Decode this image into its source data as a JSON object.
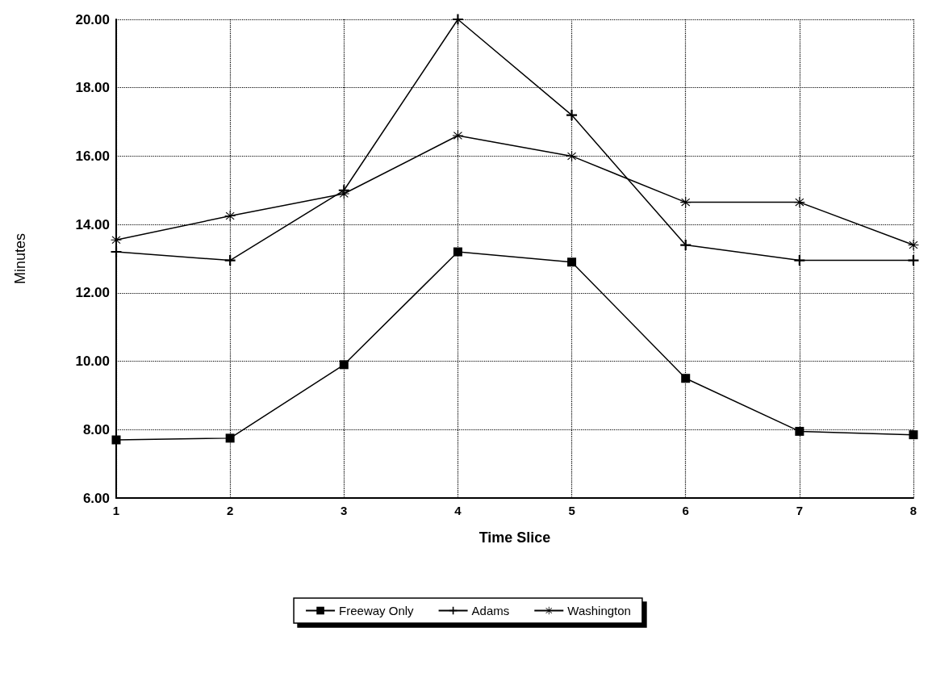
{
  "chart_data": {
    "type": "line",
    "xlabel": "Time Slice",
    "ylabel": "Minutes",
    "x": [
      1,
      2,
      3,
      4,
      5,
      6,
      7,
      8
    ],
    "xlim": [
      1,
      8
    ],
    "xticks": [
      1,
      2,
      3,
      4,
      5,
      6,
      7,
      8
    ],
    "ylim": [
      6,
      20
    ],
    "yticks": [
      {
        "value": 6,
        "label": "6.00"
      },
      {
        "value": 8,
        "label": "8.00"
      },
      {
        "value": 10,
        "label": "10.00"
      },
      {
        "value": 12,
        "label": "12.00"
      },
      {
        "value": 14,
        "label": "14.00"
      },
      {
        "value": 16,
        "label": "16.00"
      },
      {
        "value": 18,
        "label": "18.00"
      },
      {
        "value": 20,
        "label": "20.00"
      }
    ],
    "grid": true,
    "legend": "bottom",
    "line_style": "solid",
    "series": [
      {
        "name": "Freeway Only",
        "color": "#000000",
        "marker": "square",
        "values": [
          7.7,
          7.75,
          9.9,
          13.2,
          12.9,
          9.5,
          7.95,
          7.85
        ]
      },
      {
        "name": "Adams",
        "color": "#000000",
        "marker": "cross",
        "values": [
          13.2,
          12.95,
          15.0,
          20.0,
          17.2,
          13.4,
          12.95,
          12.95
        ]
      },
      {
        "name": "Washington",
        "color": "#000000",
        "marker": "star",
        "values": [
          13.55,
          14.25,
          14.9,
          16.6,
          16.0,
          14.65,
          14.65,
          13.4
        ]
      }
    ]
  }
}
